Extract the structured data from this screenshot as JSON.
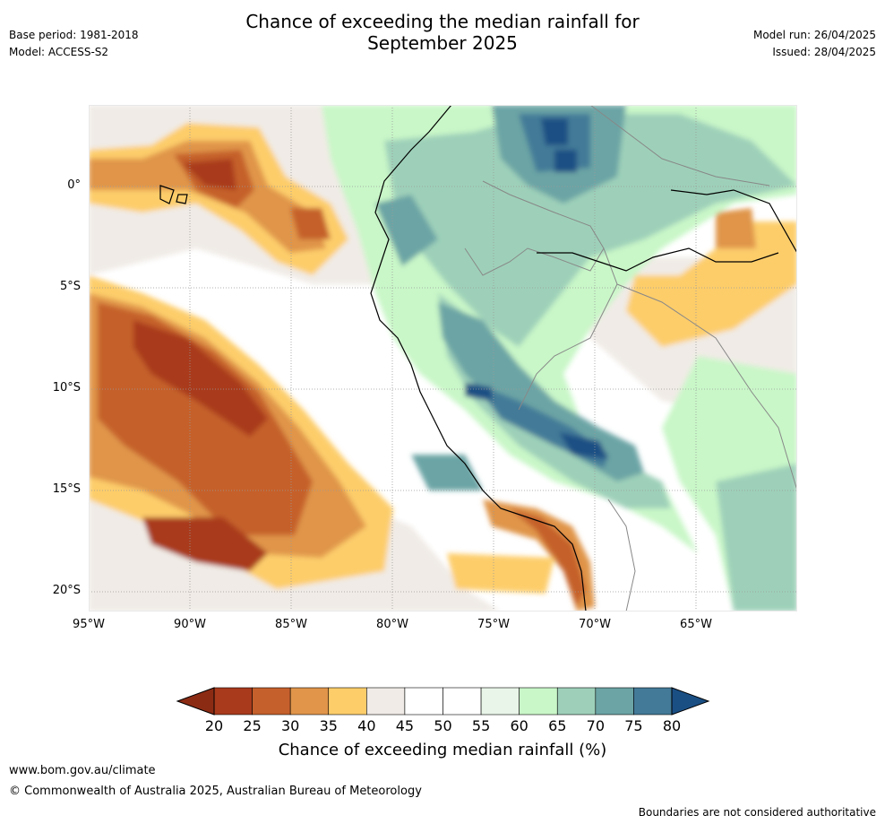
{
  "header": {
    "title_line1": "Chance of exceeding the median rainfall for",
    "title_line2": "September 2025",
    "base_period": "Base period: 1981-2018",
    "model": "Model: ACCESS-S2",
    "model_run": "Model run: 26/04/2025",
    "issued": "Issued: 28/04/2025"
  },
  "map": {
    "lat_labels": [
      "0°",
      "5°S",
      "10°S",
      "15°S",
      "20°S"
    ],
    "lon_labels": [
      "95°W",
      "90°W",
      "85°W",
      "80°W",
      "75°W",
      "70°W",
      "65°W"
    ],
    "lon_range": [
      -95,
      -60
    ],
    "lat_range": [
      -21,
      4
    ],
    "regions": [
      {
        "name": "dry-northwest",
        "class": "25-30",
        "lon": -91,
        "lat": 0.5
      },
      {
        "name": "dry-offshore-band",
        "class": "20-25",
        "lon": -88,
        "lat": -10
      },
      {
        "name": "wet-andes-north",
        "class": "75-80",
        "lon": -73,
        "lat": 1.5
      },
      {
        "name": "wet-andes-south",
        "class": "75-80",
        "lon": -71,
        "lat": -13
      },
      {
        "name": "dry-peru-coast",
        "class": "20-25",
        "lon": -70.5,
        "lat": -20
      },
      {
        "name": "dry-brazil",
        "class": "35-40",
        "lon": -66,
        "lat": -6
      }
    ]
  },
  "colorbar": {
    "ticks": [
      "20",
      "25",
      "30",
      "35",
      "40",
      "45",
      "50",
      "55",
      "60",
      "65",
      "70",
      "75",
      "80"
    ],
    "colors": [
      "#a93a1c",
      "#c5602c",
      "#e0954a",
      "#fdcd6a",
      "#f0ebe6",
      "#ffffff",
      "#ffffff",
      "#e8f5e8",
      "#c9f7c8",
      "#9ed0b9",
      "#6ca4a5",
      "#437a98"
    ],
    "under_color": "#8c2b14",
    "over_color": "#1a4f84",
    "label": "Chance of exceeding median rainfall (%)"
  },
  "footer": {
    "url": "www.bom.gov.au/climate",
    "copyright": "© Commonwealth of Australia 2025, Australian Bureau of Meteorology",
    "note": "Boundaries are not considered authoritative"
  }
}
